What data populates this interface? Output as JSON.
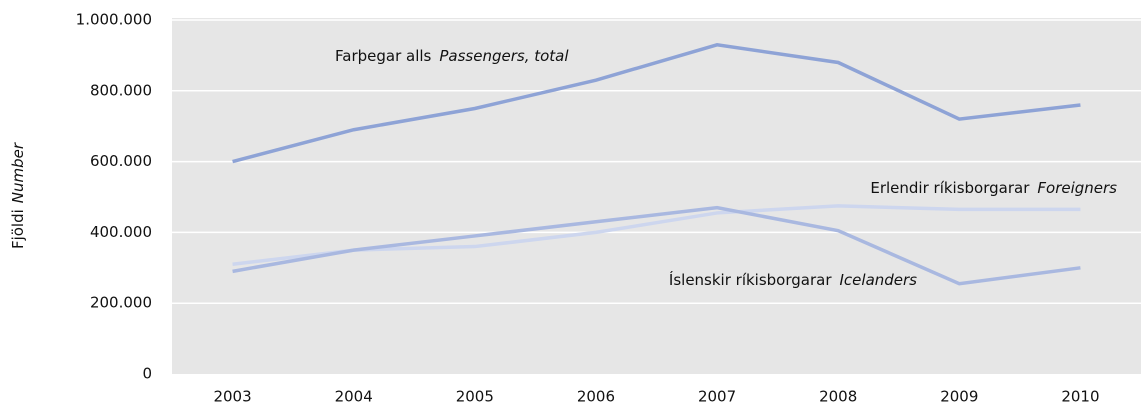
{
  "chart_data": {
    "type": "line",
    "ylabel": "Fjöldi",
    "ylabel_en": "Number",
    "categories": [
      "2003",
      "2004",
      "2005",
      "2006",
      "2007",
      "2008",
      "2009",
      "2010"
    ],
    "series": [
      {
        "name": "Farþegar alls",
        "name_en": "Passengers, total",
        "color": "#8ea3d6",
        "values": [
          600000,
          690000,
          750000,
          830000,
          930000,
          880000,
          720000,
          760000
        ]
      },
      {
        "name": "Erlendir ríkisborgarar",
        "name_en": "Foreigners",
        "color": "#cdd6ee",
        "values": [
          310000,
          350000,
          360000,
          400000,
          455000,
          475000,
          465000,
          465000
        ]
      },
      {
        "name": "Íslenskir ríkisborgarar",
        "name_en": "Icelanders",
        "color": "#a9b8e0",
        "values": [
          290000,
          350000,
          390000,
          430000,
          470000,
          405000,
          255000,
          300000
        ]
      }
    ],
    "ylim": [
      0,
      1000000
    ],
    "yticks": [
      0,
      {
        "value": 200000,
        "label": "200.000"
      },
      {
        "value": 400000,
        "label": "400.000"
      },
      {
        "value": 600000,
        "label": "600.000"
      },
      {
        "value": 800000,
        "label": "800.000"
      },
      {
        "value": 1000000,
        "label": "1.000.000"
      }
    ],
    "grid": true
  }
}
